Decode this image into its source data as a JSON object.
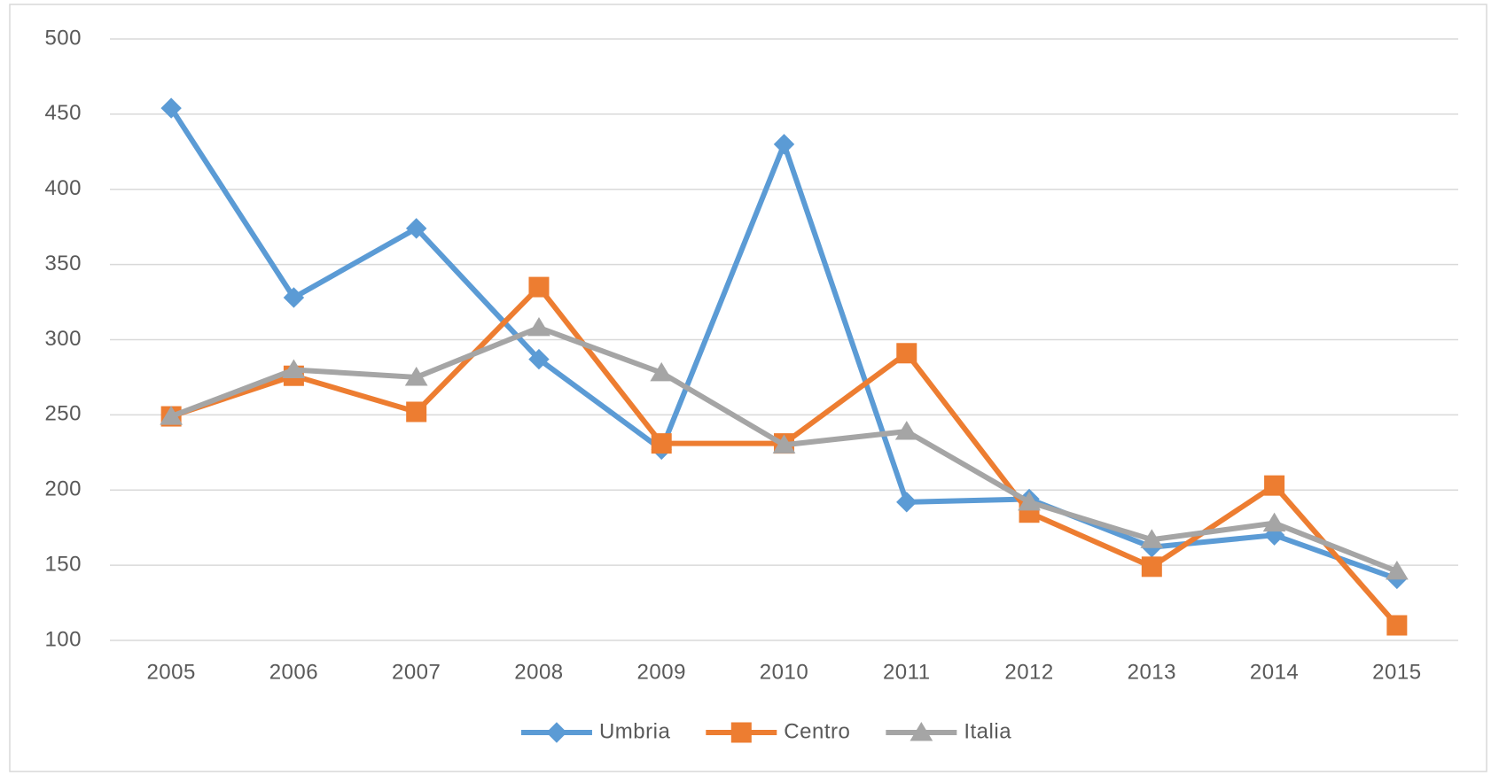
{
  "chart_data": {
    "type": "line",
    "categories": [
      "2005",
      "2006",
      "2007",
      "2008",
      "2009",
      "2010",
      "2011",
      "2012",
      "2013",
      "2014",
      "2015"
    ],
    "series": [
      {
        "name": "Umbria",
        "color": "#5b9bd5",
        "marker": "diamond",
        "values": [
          454,
          328,
          374,
          287,
          227,
          430,
          192,
          194,
          162,
          170,
          141
        ]
      },
      {
        "name": "Centro",
        "color": "#ed7d31",
        "marker": "square",
        "values": [
          249,
          276,
          252,
          335,
          231,
          231,
          291,
          185,
          149,
          203,
          110
        ]
      },
      {
        "name": "Italia",
        "color": "#a5a5a5",
        "marker": "triangle",
        "values": [
          249,
          280,
          275,
          308,
          278,
          230,
          239,
          192,
          167,
          178,
          146
        ]
      }
    ],
    "ylim": [
      100,
      500
    ],
    "yticks": [
      100,
      150,
      200,
      250,
      300,
      350,
      400,
      450,
      500
    ],
    "grid": true,
    "legend": "bottom"
  }
}
